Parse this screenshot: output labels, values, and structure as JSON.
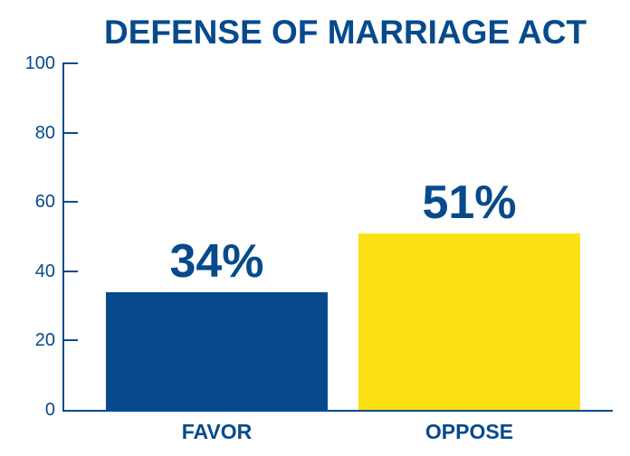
{
  "chart_data": {
    "type": "bar",
    "title": "DEFENSE OF MARRIAGE ACT",
    "xlabel": "",
    "ylabel": "",
    "categories": [
      "FAVOR",
      "OPPOSE"
    ],
    "values": [
      34,
      51
    ],
    "value_labels": [
      "34%",
      "51%"
    ],
    "colors": [
      "#064a8c",
      "#fde014"
    ],
    "ylim": [
      0,
      100
    ],
    "yticks": [
      0,
      20,
      40,
      60,
      80,
      100
    ],
    "ytick_labels": [
      "0",
      "20",
      "40",
      "60",
      "80",
      "100"
    ],
    "grid": false,
    "legend": "none"
  },
  "colors": {
    "primary": "#064a8c",
    "accent": "#fde014",
    "background": "#ffffff"
  }
}
